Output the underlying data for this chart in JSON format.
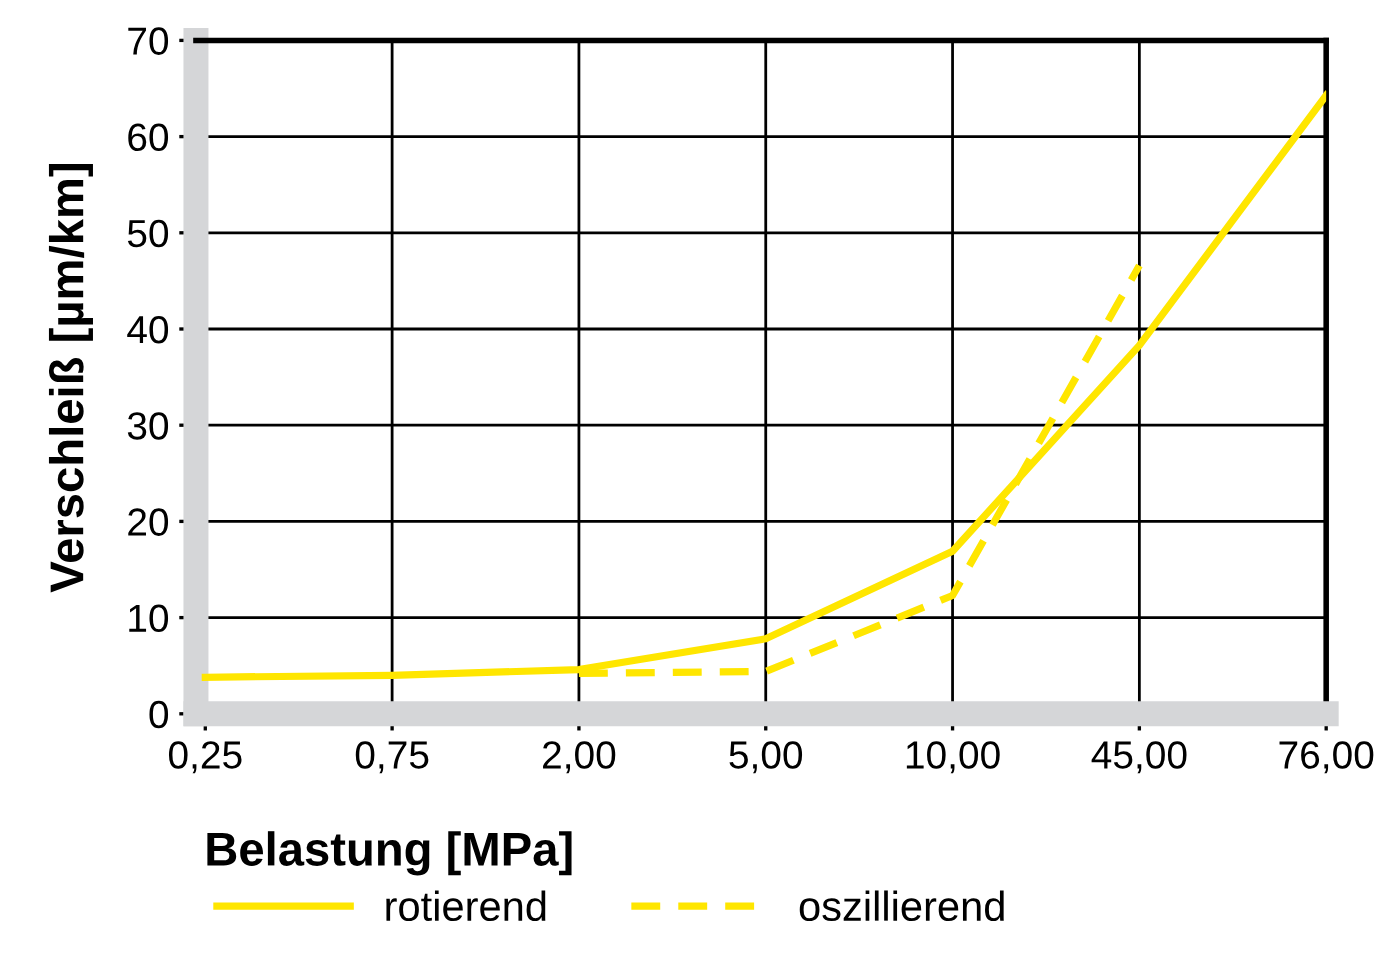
{
  "chart_data": {
    "type": "line",
    "xlabel": "Belastung [MPa]",
    "ylabel": "Verschleiß [µm/km]",
    "categories": [
      "0,25",
      "0,75",
      "2,00",
      "5,00",
      "10,00",
      "45,00",
      "76,00"
    ],
    "ylim": [
      0,
      70
    ],
    "yticks": [
      0,
      10,
      20,
      30,
      40,
      50,
      60,
      70
    ],
    "grid": true,
    "legend": "bottom",
    "series": [
      {
        "name": "rotierend",
        "color": "#ffe600",
        "line_style": "solid",
        "values": [
          3.8,
          4.0,
          4.6,
          7.8,
          16.9,
          38.3,
          64.3
        ]
      },
      {
        "name": "oszillierend",
        "color": "#ffe600",
        "line_style": "dashed",
        "values": [
          null,
          null,
          4.2,
          4.4,
          12.3,
          46.6,
          null
        ]
      }
    ]
  }
}
